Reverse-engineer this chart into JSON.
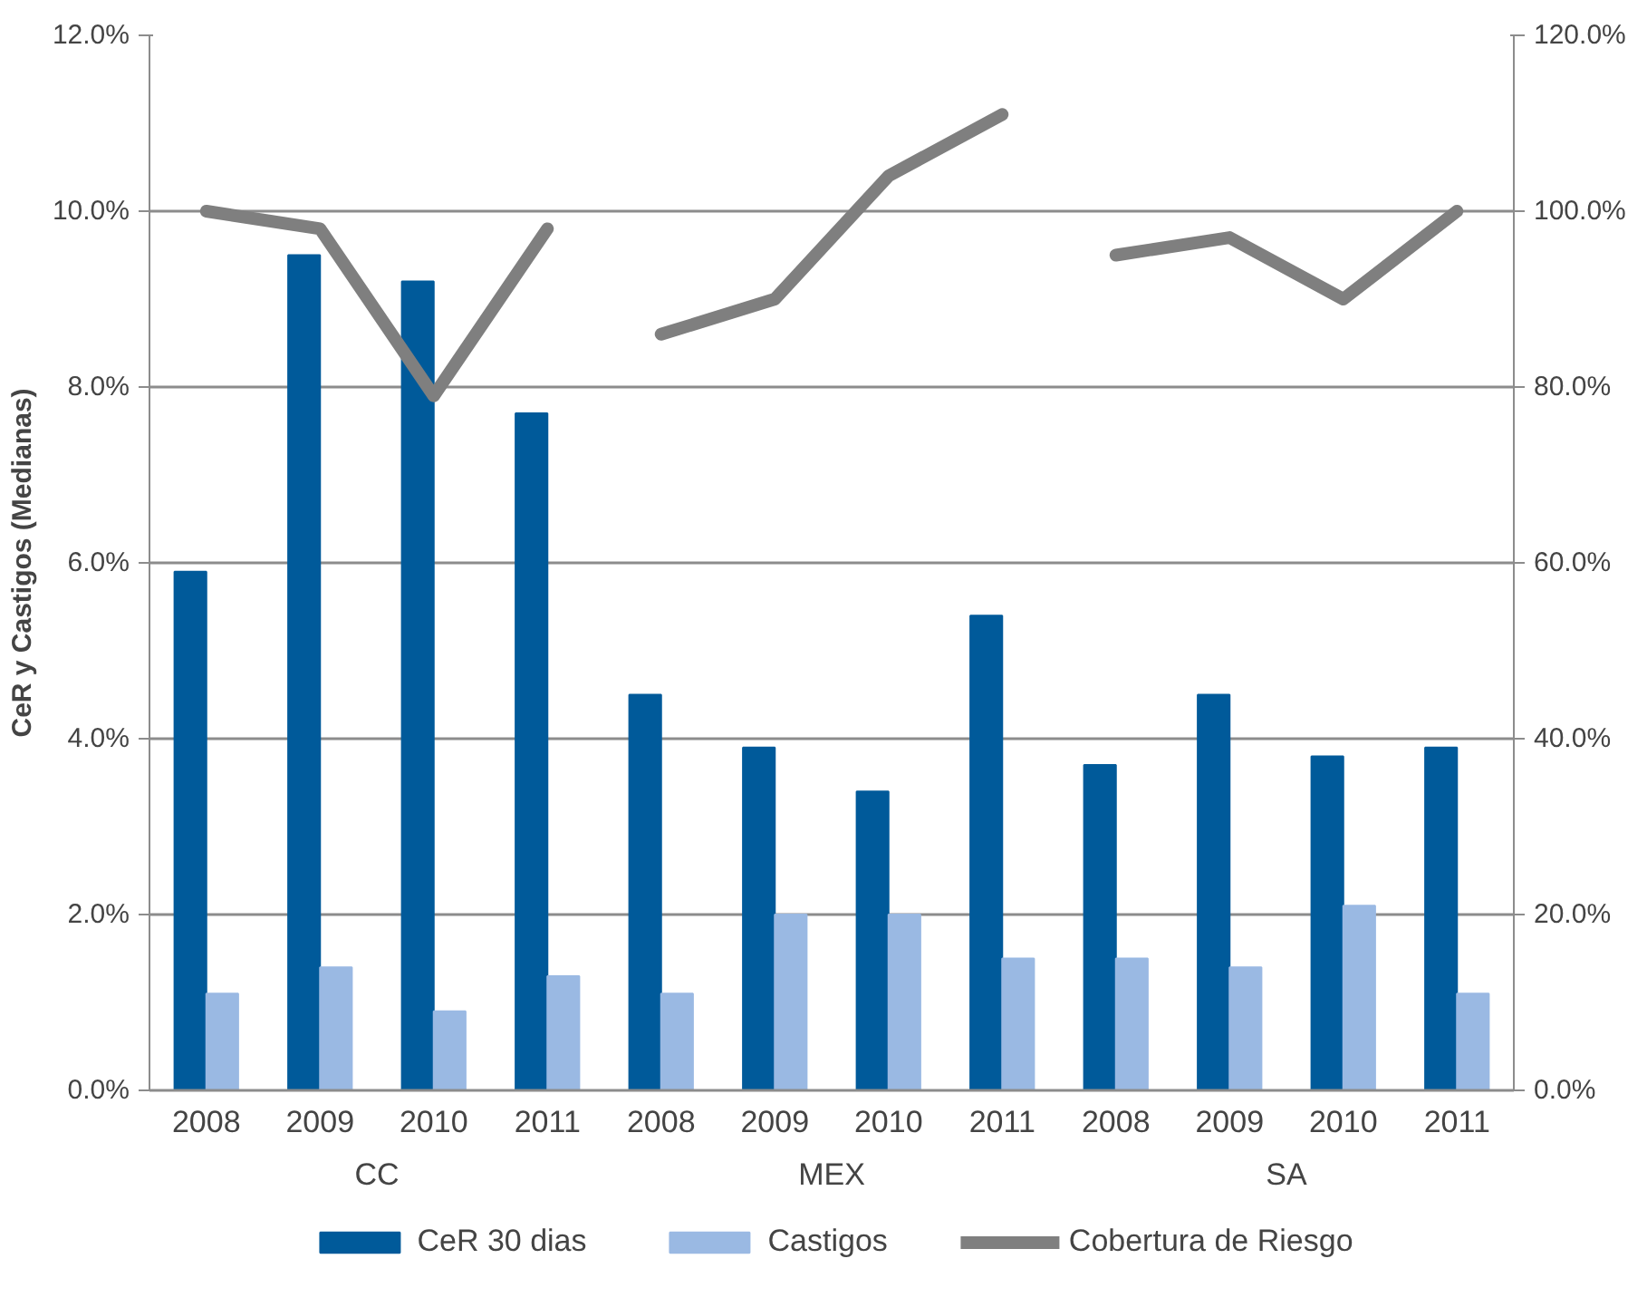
{
  "chart_data": {
    "type": "bar",
    "ylabel": "CeR y Castigos (Medianas)",
    "categories": [
      "2008",
      "2009",
      "2010",
      "2011",
      "2008",
      "2009",
      "2010",
      "2011",
      "2008",
      "2009",
      "2010",
      "2011"
    ],
    "annotations": [
      "CC",
      "MEX",
      "SA"
    ],
    "series": [
      {
        "name": "CeR 30 dias",
        "color": "#005a9a",
        "values": [
          5.9,
          9.5,
          9.2,
          7.7,
          4.5,
          3.9,
          3.4,
          5.4,
          3.7,
          4.5,
          3.8,
          3.9
        ]
      },
      {
        "name": "Castigos",
        "color": "#9ab9e3",
        "values": [
          1.1,
          1.4,
          0.9,
          1.3,
          1.1,
          2.0,
          2.0,
          1.5,
          1.5,
          1.4,
          2.1,
          1.1
        ]
      },
      {
        "name": "Cobertura de Riesgo",
        "type": "line",
        "axis": "y2",
        "color": "#7f7f7f",
        "values": [
          100,
          98,
          79,
          98,
          86,
          90,
          104,
          111,
          95,
          97,
          90,
          100
        ]
      }
    ],
    "ylim": [
      0,
      12
    ],
    "yticks": [
      {
        "value": 0,
        "label": "0.0%"
      },
      {
        "value": 2,
        "label": "2.0%"
      },
      {
        "value": 4,
        "label": "4.0%"
      },
      {
        "value": 6,
        "label": "6.0%"
      },
      {
        "value": 8,
        "label": "8.0%"
      },
      {
        "value": 10,
        "label": "10.0%"
      },
      {
        "value": 12,
        "label": "12.0%"
      }
    ],
    "y2lim": [
      0,
      120
    ],
    "y2ticks": [
      {
        "value": 0,
        "label": "0.0%"
      },
      {
        "value": 20,
        "label": "20.0%"
      },
      {
        "value": 40,
        "label": "40.0%"
      },
      {
        "value": 60,
        "label": "60.0%"
      },
      {
        "value": 80,
        "label": "80.0%"
      },
      {
        "value": 100,
        "label": "100.0%"
      },
      {
        "value": 120,
        "label": "120.0%"
      }
    ],
    "grid": "y",
    "legend": "bottom"
  }
}
